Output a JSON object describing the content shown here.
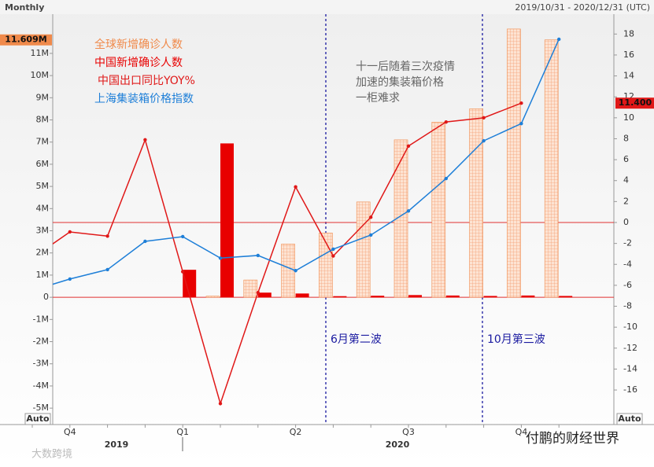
{
  "header": {
    "title": "Monthly",
    "range": "2019/10/31 - 2020/12/31 (UTC)"
  },
  "auto_buttons": [
    "Auto",
    "Auto"
  ],
  "watermarks": [
    "大数跨境",
    "付鹏的财经世界"
  ],
  "chart_data": {
    "type": "bar",
    "categories": [
      null,
      "Q4",
      null,
      null,
      "Q1",
      null,
      null,
      "Q2",
      null,
      null,
      "Q3",
      null,
      null,
      "Q4",
      null
    ],
    "years": [
      "2019",
      "2020"
    ],
    "series": [
      {
        "name": "全球新增确诊人数",
        "color": "#f08a4b",
        "type": "bar",
        "hatched": true,
        "values": [
          null,
          null,
          null,
          null,
          null,
          50000,
          780000,
          2400000,
          2900000,
          4300000,
          7100000,
          7900000,
          8500000,
          12100000,
          11609000
        ],
        "value_labels": [
          null,
          null,
          null,
          null,
          null,
          null,
          null,
          null,
          null,
          null,
          null,
          null,
          null,
          null,
          "11.609M"
        ]
      },
      {
        "name": "中国新增确诊人数",
        "color": "#e80000",
        "type": "bar",
        "values": [
          null,
          null,
          null,
          null,
          1240000,
          6940000,
          210000,
          170000,
          50000,
          70000,
          100000,
          80000,
          60000,
          80000,
          60000
        ]
      },
      {
        "name": "中国出口同比YOY%",
        "color": "#e01818",
        "type": "line",
        "axis": "y2",
        "values": [
          -3.4,
          -0.9,
          -1.3,
          7.9,
          -4.7,
          -17.3,
          -6.7,
          3.4,
          -3.2,
          0.5,
          7.3,
          9.6,
          10.0,
          11.4,
          null
        ],
        "value_labels": [
          null,
          null,
          null,
          null,
          null,
          null,
          null,
          null,
          null,
          null,
          null,
          null,
          null,
          "11.400",
          null
        ]
      },
      {
        "name": "上海集装箱价格指数",
        "color": "#1e7fd8",
        "type": "line",
        "axis": "y2",
        "values": [
          -6.5,
          -5.4,
          -4.5,
          -1.8,
          -1.35,
          -3.4,
          -3.15,
          -4.6,
          -2.55,
          -1.2,
          1.1,
          4.2,
          7.8,
          9.45,
          17.5
        ]
      }
    ],
    "ylim": [
      -5740000,
      12770000
    ],
    "yticks": [
      {
        "value": -5000000,
        "label": "-5M"
      },
      {
        "value": -4000000,
        "label": "-4M"
      },
      {
        "value": -3000000,
        "label": "-3M"
      },
      {
        "value": -2000000,
        "label": "-2M"
      },
      {
        "value": -1000000,
        "label": "-1M"
      },
      0,
      {
        "value": 1000000,
        "label": "1M"
      },
      {
        "value": 2000000,
        "label": "2M"
      },
      {
        "value": 3000000,
        "label": "3M"
      },
      {
        "value": 4000000,
        "label": "4M"
      },
      {
        "value": 5000000,
        "label": "5M"
      },
      {
        "value": 6000000,
        "label": "6M"
      },
      {
        "value": 7000000,
        "label": "7M"
      },
      {
        "value": 8000000,
        "label": "8M"
      },
      {
        "value": 9000000,
        "label": "9M"
      },
      {
        "value": 10000000,
        "label": "10M"
      },
      {
        "value": 11000000,
        "label": "11M"
      }
    ],
    "y2lim": [
      -19.3,
      19.9
    ],
    "y2ticks": [
      -16,
      -14,
      -12,
      -10,
      -8,
      -6,
      -4,
      -2,
      0,
      2,
      4,
      6,
      8,
      10,
      12,
      14,
      16,
      18
    ],
    "zero_lines": true,
    "annotation": [
      "十一后随着三次疫情",
      "加速的集装箱价格",
      "一柜难求"
    ],
    "wave_labels": [
      "6月第二波",
      "10月第三波"
    ]
  }
}
